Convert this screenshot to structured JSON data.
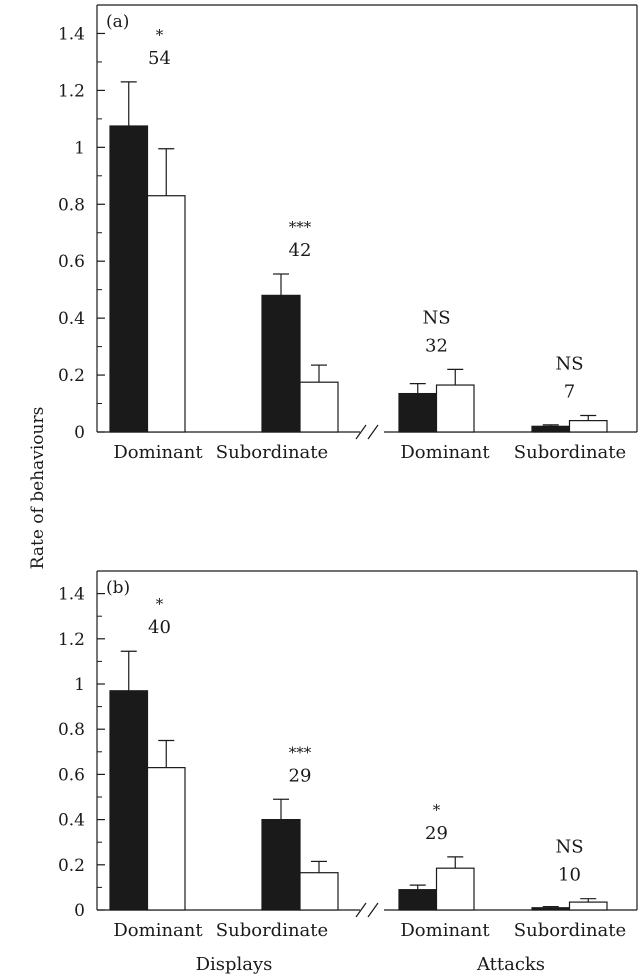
{
  "chart_data": {
    "type": "bar",
    "ylabel": "Rate of behaviours",
    "x_groups": [
      "Displays",
      "Attacks"
    ],
    "panels": [
      {
        "panel_label": "(a)",
        "ylim": [
          0,
          1.5
        ],
        "yticks": [
          "0",
          "0.2",
          "0.4",
          "0.6",
          "0.8",
          "1",
          "1.2",
          "1.4"
        ],
        "categories": [
          "Dominant",
          "Subordinate",
          "Dominant",
          "Subordinate"
        ],
        "series": [
          {
            "fill": "#1a1a1a",
            "values": [
              1.075,
              0.48,
              0.135,
              0.02
            ],
            "errors": [
              0.155,
              0.075,
              0.035,
              0.005
            ]
          },
          {
            "fill": "#ffffff",
            "values": [
              0.83,
              0.175,
              0.165,
              0.04
            ],
            "errors": [
              0.165,
              0.06,
              0.055,
              0.018
            ]
          }
        ],
        "annotations": [
          {
            "sig": "*",
            "n": "54"
          },
          {
            "sig": "***",
            "n": "42"
          },
          {
            "sig": "NS",
            "n": "32"
          },
          {
            "sig": "NS",
            "n": "7"
          }
        ]
      },
      {
        "panel_label": "(b)",
        "ylim": [
          0,
          1.5
        ],
        "yticks": [
          "0",
          "0.2",
          "0.4",
          "0.6",
          "0.8",
          "1",
          "1.2",
          "1.4"
        ],
        "categories": [
          "Dominant",
          "Subordinate",
          "Dominant",
          "Subordinate"
        ],
        "series": [
          {
            "fill": "#1a1a1a",
            "values": [
              0.97,
              0.4,
              0.09,
              0.01
            ],
            "errors": [
              0.175,
              0.09,
              0.02,
              0.005
            ]
          },
          {
            "fill": "#ffffff",
            "values": [
              0.63,
              0.165,
              0.185,
              0.035
            ],
            "errors": [
              0.12,
              0.05,
              0.05,
              0.015
            ]
          }
        ],
        "annotations": [
          {
            "sig": "*",
            "n": "40"
          },
          {
            "sig": "***",
            "n": "29"
          },
          {
            "sig": "*",
            "n": "29"
          },
          {
            "sig": "NS",
            "n": "10"
          }
        ]
      }
    ]
  }
}
